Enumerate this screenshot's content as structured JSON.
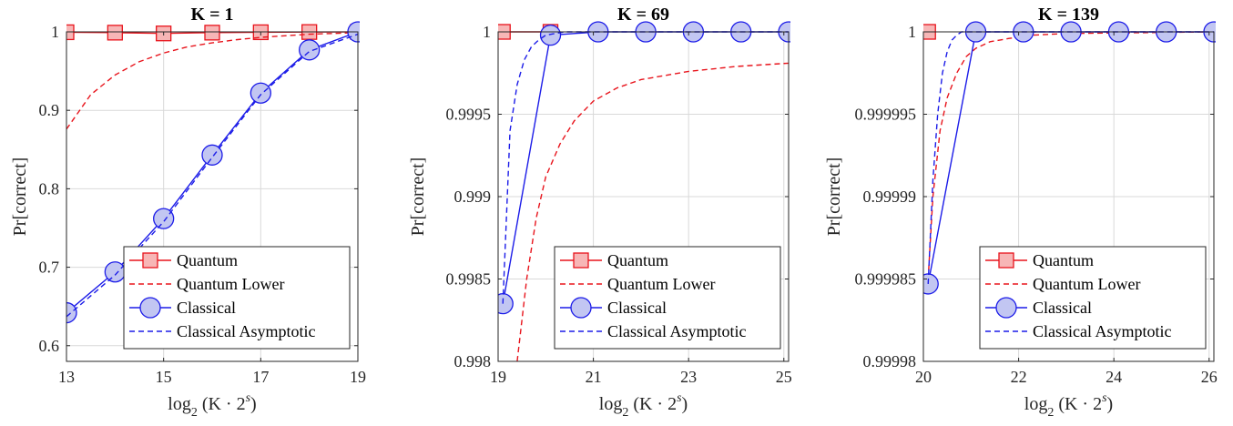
{
  "colors": {
    "quantum": "#e8141c",
    "quantum_fill": "#f7b6b6",
    "classical": "#1c1ce8",
    "classical_fill": "#c2c6f2",
    "grid": "#d9d9d9"
  },
  "legend_labels": {
    "quantum": "Quantum",
    "quantum_lower": "Quantum Lower",
    "classical": "Classical",
    "classical_asym": "Classical Asymptotic"
  },
  "chart_data": [
    {
      "type": "line",
      "title": "K = 1",
      "xlabel": "log₂ (K · 2^s)",
      "ylabel": "Pr[correct]",
      "xlim": [
        13,
        19
      ],
      "ylim": [
        0.58,
        1.0
      ],
      "xticks": [
        13,
        15,
        17,
        19
      ],
      "yticks": [
        0.6,
        0.7,
        0.8,
        0.9,
        1
      ],
      "ytick_labels": [
        "0.6",
        "0.7",
        "0.8",
        "0.9",
        "1"
      ],
      "grid": true,
      "legend": "lower-right",
      "series": [
        {
          "name": "Quantum",
          "style": "quantum",
          "x": [
            13,
            14,
            15,
            16,
            17,
            18,
            19
          ],
          "y": [
            0.9995,
            0.999,
            0.998,
            0.999,
            0.9995,
            0.9998,
            1.0
          ]
        },
        {
          "name": "Quantum Lower",
          "style": "quantum_lower",
          "x": [
            13,
            13.5,
            14,
            14.5,
            15,
            15.5,
            16,
            16.5,
            17,
            17.5,
            18,
            18.5,
            19
          ],
          "y": [
            0.876,
            0.92,
            0.945,
            0.962,
            0.973,
            0.981,
            0.986,
            0.99,
            0.993,
            0.995,
            0.997,
            0.998,
            0.999
          ]
        },
        {
          "name": "Classical",
          "style": "classical",
          "x": [
            13,
            14,
            15,
            16,
            17,
            18,
            19
          ],
          "y": [
            0.642,
            0.694,
            0.762,
            0.843,
            0.922,
            0.977,
            1.0
          ]
        },
        {
          "name": "Classical Asymptotic",
          "style": "classical_asym",
          "x": [
            13,
            14,
            15,
            16,
            17,
            18,
            19
          ],
          "y": [
            0.637,
            0.69,
            0.758,
            0.84,
            0.92,
            0.975,
            0.997
          ]
        }
      ]
    },
    {
      "type": "line",
      "title": "K = 69",
      "xlabel": "log₂ (K · 2^s)",
      "ylabel": "Pr[correct]",
      "xlim": [
        19,
        25.1
      ],
      "ylim": [
        0.998,
        1.0
      ],
      "xticks": [
        19,
        21,
        23,
        25
      ],
      "yticks": [
        0.998,
        0.9985,
        0.999,
        0.9995,
        1
      ],
      "ytick_labels": [
        "0.998",
        "0.9985",
        "0.999",
        "0.9995",
        "1"
      ],
      "grid": true,
      "legend": "lower-right",
      "series": [
        {
          "name": "Quantum",
          "style": "quantum",
          "x": [
            19.1,
            20.1
          ],
          "y": [
            1.0,
            1.0
          ]
        },
        {
          "name": "Quantum Lower",
          "style": "quantum_lower",
          "x": [
            19.4,
            19.6,
            19.8,
            20.0,
            20.3,
            20.6,
            21.0,
            21.5,
            22.0,
            23.0,
            24.0,
            25.1
          ],
          "y": [
            0.998,
            0.9985,
            0.99887,
            0.99912,
            0.99932,
            0.99946,
            0.99958,
            0.99966,
            0.99971,
            0.99976,
            0.99979,
            0.99981
          ]
        },
        {
          "name": "Classical",
          "style": "classical",
          "x": [
            19.1,
            20.1,
            21.1,
            22.1,
            23.1,
            24.1,
            25.1
          ],
          "y": [
            0.99835,
            0.99998,
            1.0,
            1.0,
            1.0,
            1.0,
            1.0
          ]
        },
        {
          "name": "Classical Asymptotic",
          "style": "classical_asym",
          "x": [
            19.1,
            19.25,
            19.4,
            19.55,
            19.7,
            19.85,
            20.0,
            20.2,
            20.4,
            25.1
          ],
          "y": [
            0.99835,
            0.9994,
            0.99968,
            0.99983,
            0.99991,
            0.99995,
            0.99998,
            0.99999,
            1.0,
            1.0
          ]
        }
      ]
    },
    {
      "type": "line",
      "title": "K = 139",
      "xlabel": "log₂ (K · 2^s)",
      "ylabel": "Pr[correct]",
      "xlim": [
        20,
        26.1
      ],
      "ylim": [
        0.99998,
        1.0
      ],
      "xticks": [
        20,
        22,
        24,
        26
      ],
      "yticks": [
        0.99998,
        0.999985,
        0.99999,
        0.999995,
        1
      ],
      "ytick_labels": [
        "0.99998",
        "0.999985",
        "0.99999",
        "0.999995",
        "1"
      ],
      "grid": true,
      "legend": "lower-right",
      "series": [
        {
          "name": "Quantum",
          "style": "quantum",
          "x": [
            20.1
          ],
          "y": [
            1.0
          ]
        },
        {
          "name": "Quantum Lower",
          "style": "quantum_lower",
          "x": [
            20.1,
            20.2,
            20.35,
            20.5,
            20.7,
            20.9,
            21.1,
            21.4,
            21.8,
            22.3,
            23,
            26.1
          ],
          "y": [
            0.999985,
            0.99999,
            0.999994,
            0.999996,
            0.9999975,
            0.9999985,
            0.999999,
            0.9999994,
            0.9999996,
            0.9999998,
            0.9999999,
            1.0
          ]
        },
        {
          "name": "Classical",
          "style": "classical",
          "x": [
            20.1,
            21.1,
            22.1,
            23.1,
            24.1,
            25.1,
            26.1
          ],
          "y": [
            0.9999847,
            1.0,
            1.0,
            1.0,
            1.0,
            1.0,
            1.0
          ]
        },
        {
          "name": "Classical Asymptotic",
          "style": "classical_asym",
          "x": [
            20.1,
            20.2,
            20.3,
            20.4,
            20.5,
            20.6,
            20.7,
            20.8,
            26.1
          ],
          "y": [
            0.9999847,
            0.999991,
            0.999995,
            0.9999975,
            0.9999988,
            0.9999995,
            0.9999998,
            1.0,
            1.0
          ]
        }
      ]
    }
  ]
}
